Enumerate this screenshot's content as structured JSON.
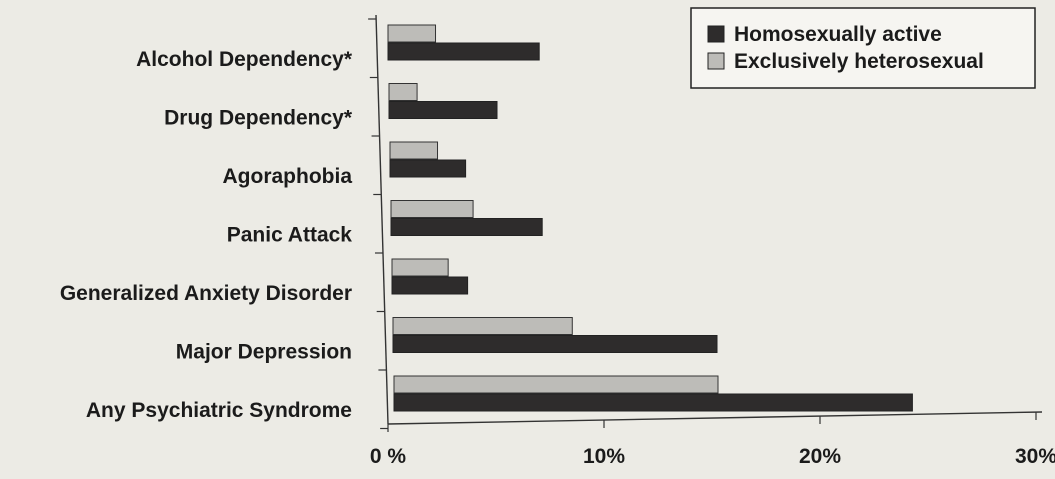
{
  "chart_data": {
    "type": "bar",
    "orientation": "horizontal",
    "categories": [
      "Alcohol Dependency*",
      "Drug Dependency*",
      "Agoraphobia",
      "Panic Attack",
      "Generalized Anxiety Disorder",
      "Major Depression",
      "Any Psychiatric Syndrome"
    ],
    "series": [
      {
        "name": "Homosexually active",
        "color": "#2e2c2c",
        "values": [
          7.0,
          5.0,
          3.5,
          7.0,
          3.5,
          15.0,
          24.0
        ]
      },
      {
        "name": "Exclusively heterosexual",
        "color": "#bdbcb8",
        "values": [
          2.2,
          1.3,
          2.2,
          3.8,
          2.6,
          8.3,
          15.0
        ]
      }
    ],
    "xticks": [
      "0 %",
      "10%",
      "20%",
      "30%"
    ],
    "xtick_values": [
      0,
      10,
      20,
      30
    ],
    "xlim": [
      0,
      30
    ],
    "legend_position": "top-right",
    "grid": false
  }
}
